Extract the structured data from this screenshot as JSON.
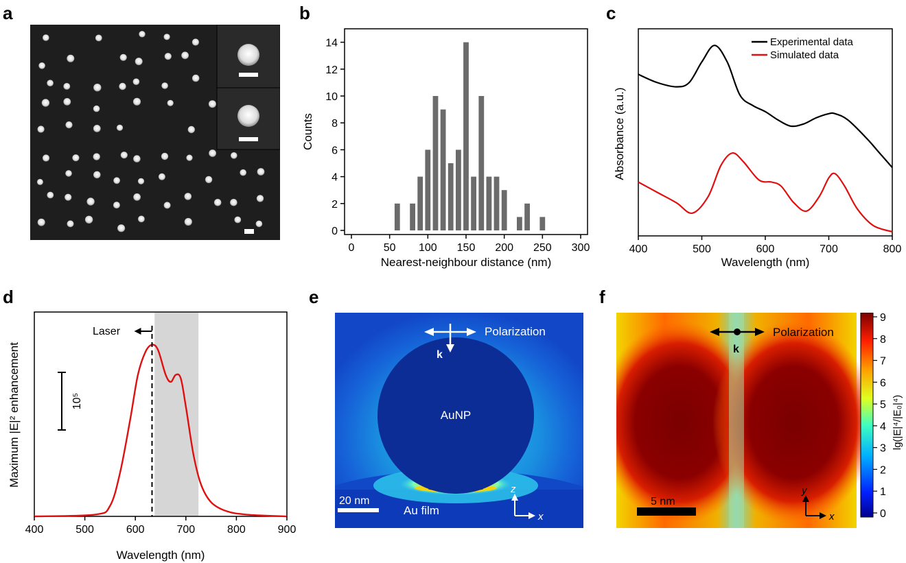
{
  "panels": {
    "a": {
      "label": "a"
    },
    "b": {
      "label": "b"
    },
    "c": {
      "label": "c"
    },
    "d": {
      "label": "d"
    },
    "e": {
      "label": "e"
    },
    "f": {
      "label": "f"
    }
  },
  "panel_e": {
    "polarization": "Polarization",
    "k": "k",
    "aunp": "AuNP",
    "scale": "20 nm",
    "film": "Au film",
    "z_axis": "z",
    "x_axis": "x"
  },
  "panel_f": {
    "polarization": "Polarization",
    "k": "k",
    "scale": "5 nm",
    "y_axis": "y",
    "x_axis": "x",
    "colorbar_ticks": [
      "0",
      "1",
      "2",
      "3",
      "4",
      "5",
      "6",
      "7",
      "8",
      "9"
    ],
    "colorbar_label": "lg(|E|⁴/|E₀|⁴)"
  },
  "chart_data": [
    {
      "panel": "b",
      "type": "bar",
      "xlabel": "Nearest-neighbour distance (nm)",
      "ylabel": "Counts",
      "xlim": [
        0,
        300
      ],
      "ylim": [
        0,
        15
      ],
      "xticks": [
        "0",
        "50",
        "100",
        "150",
        "200",
        "250",
        "300"
      ],
      "yticks": [
        "0",
        "2",
        "4",
        "6",
        "8",
        "10",
        "12",
        "14"
      ],
      "x": [
        60,
        80,
        90,
        100,
        110,
        120,
        130,
        140,
        150,
        160,
        170,
        180,
        190,
        200,
        210,
        220,
        230,
        250
      ],
      "values": [
        2,
        2,
        4,
        6,
        10,
        9,
        5,
        6,
        14,
        4,
        10,
        4,
        4,
        3,
        0,
        1,
        2,
        1
      ],
      "bin_width": 7,
      "color": "#6b6b6b"
    },
    {
      "panel": "c",
      "type": "line",
      "xlabel": "Wavelength (nm)",
      "ylabel": "Absorbance (a.u.)",
      "xlim": [
        400,
        800
      ],
      "xticks": [
        "400",
        "500",
        "600",
        "700",
        "800"
      ],
      "legend": "top-right",
      "series": [
        {
          "name": "Experimental data",
          "color": "#000000",
          "x": [
            400,
            430,
            460,
            480,
            500,
            520,
            540,
            560,
            580,
            600,
            620,
            640,
            660,
            680,
            700,
            710,
            730,
            760,
            780,
            800
          ],
          "y": [
            0.78,
            0.74,
            0.72,
            0.74,
            0.84,
            0.92,
            0.84,
            0.68,
            0.63,
            0.6,
            0.56,
            0.53,
            0.54,
            0.57,
            0.59,
            0.59,
            0.56,
            0.47,
            0.4,
            0.33
          ]
        },
        {
          "name": "Simulated data",
          "color": "#e01010",
          "x": [
            400,
            430,
            460,
            485,
            510,
            530,
            548,
            565,
            590,
            610,
            625,
            645,
            665,
            685,
            700,
            710,
            725,
            745,
            770,
            800
          ],
          "y": [
            0.26,
            0.21,
            0.16,
            0.11,
            0.19,
            0.34,
            0.4,
            0.36,
            0.27,
            0.26,
            0.24,
            0.16,
            0.12,
            0.19,
            0.28,
            0.3,
            0.24,
            0.13,
            0.05,
            0.02
          ]
        }
      ]
    },
    {
      "panel": "d",
      "type": "line",
      "xlabel": "Wavelength (nm)",
      "ylabel": "Maximum |E|² enhancement",
      "xlim": [
        400,
        900
      ],
      "xticks": [
        "400",
        "500",
        "600",
        "700",
        "800",
        "900"
      ],
      "annotations": {
        "laser": "Laser",
        "scale_bar": "10⁵",
        "laser_line_x": 633,
        "shaded_range": [
          638,
          725
        ]
      },
      "series": [
        {
          "name": "",
          "color": "#e01010",
          "x": [
            400,
            520,
            550,
            570,
            590,
            605,
            620,
            633,
            645,
            660,
            670,
            680,
            690,
            700,
            715,
            730,
            750,
            780,
            820,
            900
          ],
          "y": [
            0.0,
            0.01,
            0.06,
            0.25,
            0.55,
            0.8,
            0.93,
            0.97,
            0.94,
            0.8,
            0.76,
            0.8,
            0.78,
            0.62,
            0.35,
            0.18,
            0.08,
            0.03,
            0.01,
            0.0
          ]
        }
      ]
    }
  ]
}
